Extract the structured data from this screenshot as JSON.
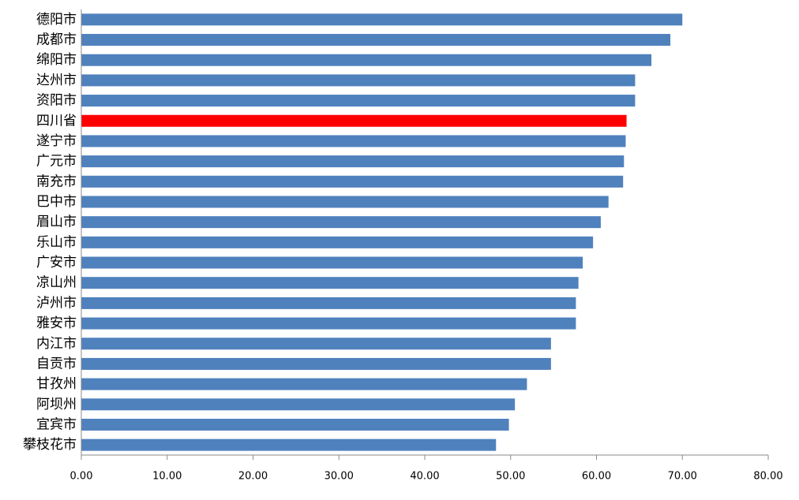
{
  "chart_data": {
    "type": "hbar",
    "categories": [
      "德阳市",
      "成都市",
      "绵阳市",
      "达州市",
      "资阳市",
      "四川省",
      "遂宁市",
      "广元市",
      "南充市",
      "巴中市",
      "眉山市",
      "乐山市",
      "广安市",
      "凉山州",
      "泸州市",
      "雅安市",
      "内江市",
      "自贡市",
      "甘孜州",
      "阿坝州",
      "宜宾市",
      "攀枝花市"
    ],
    "values": [
      70.0,
      68.6,
      66.4,
      64.5,
      64.5,
      63.5,
      63.4,
      63.2,
      63.1,
      61.4,
      60.5,
      59.6,
      58.4,
      57.9,
      57.6,
      57.6,
      54.7,
      54.7,
      51.9,
      50.5,
      49.8,
      48.3
    ],
    "colors": [
      "#4f81bd",
      "#4f81bd",
      "#4f81bd",
      "#4f81bd",
      "#4f81bd",
      "#ff0000",
      "#4f81bd",
      "#4f81bd",
      "#4f81bd",
      "#4f81bd",
      "#4f81bd",
      "#4f81bd",
      "#4f81bd",
      "#4f81bd",
      "#4f81bd",
      "#4f81bd",
      "#4f81bd",
      "#4f81bd",
      "#4f81bd",
      "#4f81bd",
      "#4f81bd",
      "#4f81bd"
    ],
    "xlim": [
      0,
      80
    ],
    "xticks": [
      {
        "value": 0,
        "label": "0.00"
      },
      {
        "value": 10,
        "label": "10.00"
      },
      {
        "value": 20,
        "label": "20.00"
      },
      {
        "value": 30,
        "label": "30.00"
      },
      {
        "value": 40,
        "label": "40.00"
      },
      {
        "value": 50,
        "label": "50.00"
      },
      {
        "value": 60,
        "label": "60.00"
      },
      {
        "value": 70,
        "label": "70.00"
      },
      {
        "value": 80,
        "label": "80.00"
      }
    ],
    "grid": false
  }
}
